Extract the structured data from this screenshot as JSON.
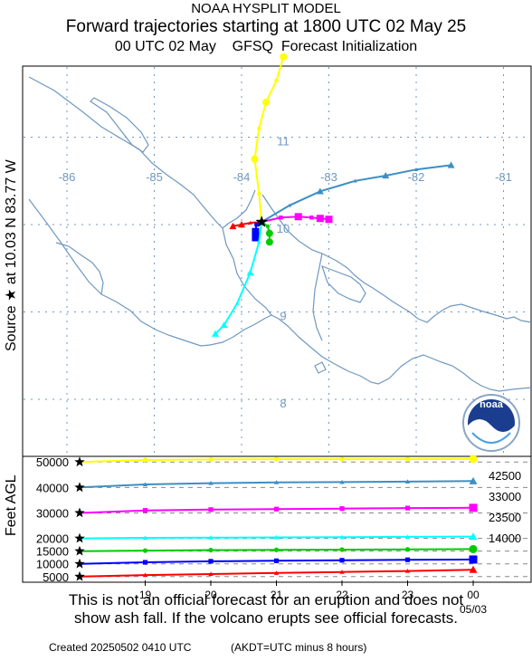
{
  "header": {
    "line1": "NOAA HYSPLIT MODEL",
    "line2": "Forward trajectories starting at 1800 UTC 02 May 25",
    "line3": "00 UTC 02 May    GFSQ  Forecast Initialization"
  },
  "source_label": "Source ★  at   10.03 N   83.77 W",
  "height_axis_label": "Feet AGL",
  "disclaimer": {
    "line1": "This is not an official forecast for an eruption and does not",
    "line2": "show ash fall. If the volcano erupts see official forecasts."
  },
  "footer": {
    "created": "Created 20250502 0410 UTC",
    "akdt": "(AKDT=UTC minus 8 hours)"
  },
  "logo_text": "noaa",
  "colors": {
    "map_lines": "#6f98c0",
    "grid_dashes": "#6f98c0",
    "t5000": "#ff0000",
    "t10000": "#0000ff",
    "t14000": "#00cc00",
    "t20000": "#00ffff",
    "t30000": "#ff00ff",
    "t40000": "#3d8fc4",
    "t50000": "#ffff00"
  },
  "chart_data": [
    {
      "type": "line",
      "subtype": "trajectory-map",
      "source": {
        "lat": 10.03,
        "lon": -83.77
      },
      "lon_ticks": [
        -86,
        -85,
        -84,
        -83,
        -82,
        -81
      ],
      "lat_ticks": [
        11,
        10,
        9,
        8
      ],
      "series": [
        {
          "name": "5000",
          "color_key": "t5000",
          "marker": "triangle",
          "points": [
            [
              -83.77,
              10.03
            ],
            [
              -83.9,
              10.02
            ],
            [
              -84.0,
              10.0
            ],
            [
              -84.1,
              9.98
            ]
          ]
        },
        {
          "name": "10000",
          "color_key": "t10000",
          "marker": "square",
          "points": [
            [
              -83.77,
              10.03
            ],
            [
              -83.83,
              10.0
            ],
            [
              -83.84,
              9.92
            ],
            [
              -83.84,
              9.85
            ]
          ]
        },
        {
          "name": "14000",
          "color_key": "t14000",
          "marker": "circle",
          "points": [
            [
              -83.77,
              10.03
            ],
            [
              -83.7,
              9.98
            ],
            [
              -83.68,
              9.9
            ],
            [
              -83.68,
              9.8
            ]
          ]
        },
        {
          "name": "20000",
          "color_key": "t20000",
          "marker": "triangle",
          "points": [
            [
              -83.77,
              10.03
            ],
            [
              -83.8,
              9.8
            ],
            [
              -83.9,
              9.45
            ],
            [
              -84.05,
              9.1
            ],
            [
              -84.2,
              8.85
            ],
            [
              -84.3,
              8.75
            ]
          ]
        },
        {
          "name": "30000",
          "color_key": "t30000",
          "marker": "square",
          "points": [
            [
              -83.77,
              10.03
            ],
            [
              -83.55,
              10.08
            ],
            [
              -83.35,
              10.09
            ],
            [
              -83.2,
              10.08
            ],
            [
              -83.1,
              10.07
            ],
            [
              -83.0,
              10.06
            ]
          ]
        },
        {
          "name": "40000",
          "color_key": "t40000",
          "marker": "triangle",
          "points": [
            [
              -83.77,
              10.03
            ],
            [
              -83.45,
              10.22
            ],
            [
              -83.1,
              10.38
            ],
            [
              -82.7,
              10.5
            ],
            [
              -82.35,
              10.56
            ],
            [
              -82.0,
              10.63
            ],
            [
              -81.6,
              10.68
            ]
          ]
        },
        {
          "name": "50000",
          "color_key": "t50000",
          "marker": "circle",
          "points": [
            [
              -83.77,
              10.03
            ],
            [
              -83.8,
              10.35
            ],
            [
              -83.85,
              10.75
            ],
            [
              -83.8,
              11.1
            ],
            [
              -83.72,
              11.4
            ],
            [
              -83.6,
              11.65
            ],
            [
              -83.52,
              11.92
            ]
          ]
        }
      ]
    },
    {
      "type": "line",
      "subtype": "height-time",
      "xlabel": "",
      "ylabel": "Feet AGL",
      "x_start_hour": 18,
      "x_end_hour": 24,
      "x_ticks": [
        {
          "hour": 19,
          "label": "19"
        },
        {
          "hour": 20,
          "label": "20"
        },
        {
          "hour": 21,
          "label": "21"
        },
        {
          "hour": 22,
          "label": "22"
        },
        {
          "hour": 23,
          "label": "23"
        },
        {
          "hour": 24,
          "label": "00"
        }
      ],
      "x_date_label": "05/03",
      "y_ticks": [
        50000,
        40000,
        30000,
        20000,
        15000,
        10000,
        5000
      ],
      "right_labels": [
        "42500",
        "33000",
        "23500",
        "14000"
      ],
      "ylim": [
        3500,
        51500
      ],
      "hours": [
        18,
        19,
        20,
        21,
        22,
        23,
        24
      ],
      "series": [
        {
          "name": "50000",
          "color_key": "t50000",
          "marker": "circle",
          "values": [
            50000,
            50800,
            51000,
            51100,
            51100,
            51100,
            51200
          ]
        },
        {
          "name": "40000",
          "color_key": "t40000",
          "marker": "triangle",
          "values": [
            40000,
            41200,
            41700,
            42000,
            42100,
            42300,
            42500
          ]
        },
        {
          "name": "30000",
          "color_key": "t30000",
          "marker": "square",
          "values": [
            30000,
            31000,
            31300,
            31500,
            31700,
            31900,
            32000
          ]
        },
        {
          "name": "20000",
          "color_key": "t20000",
          "marker": "triangle",
          "values": [
            20000,
            20200,
            20300,
            20400,
            20500,
            20600,
            20700
          ]
        },
        {
          "name": "15000",
          "color_key": "t14000",
          "marker": "circle",
          "values": [
            15000,
            15200,
            15400,
            15500,
            15600,
            15700,
            15800
          ]
        },
        {
          "name": "10000",
          "color_key": "t10000",
          "marker": "square",
          "values": [
            10000,
            10600,
            11000,
            11200,
            11400,
            11600,
            11700
          ]
        },
        {
          "name": "5000",
          "color_key": "t5000",
          "marker": "triangle",
          "values": [
            5000,
            5600,
            6000,
            6400,
            6800,
            7200,
            7700
          ]
        }
      ]
    }
  ]
}
